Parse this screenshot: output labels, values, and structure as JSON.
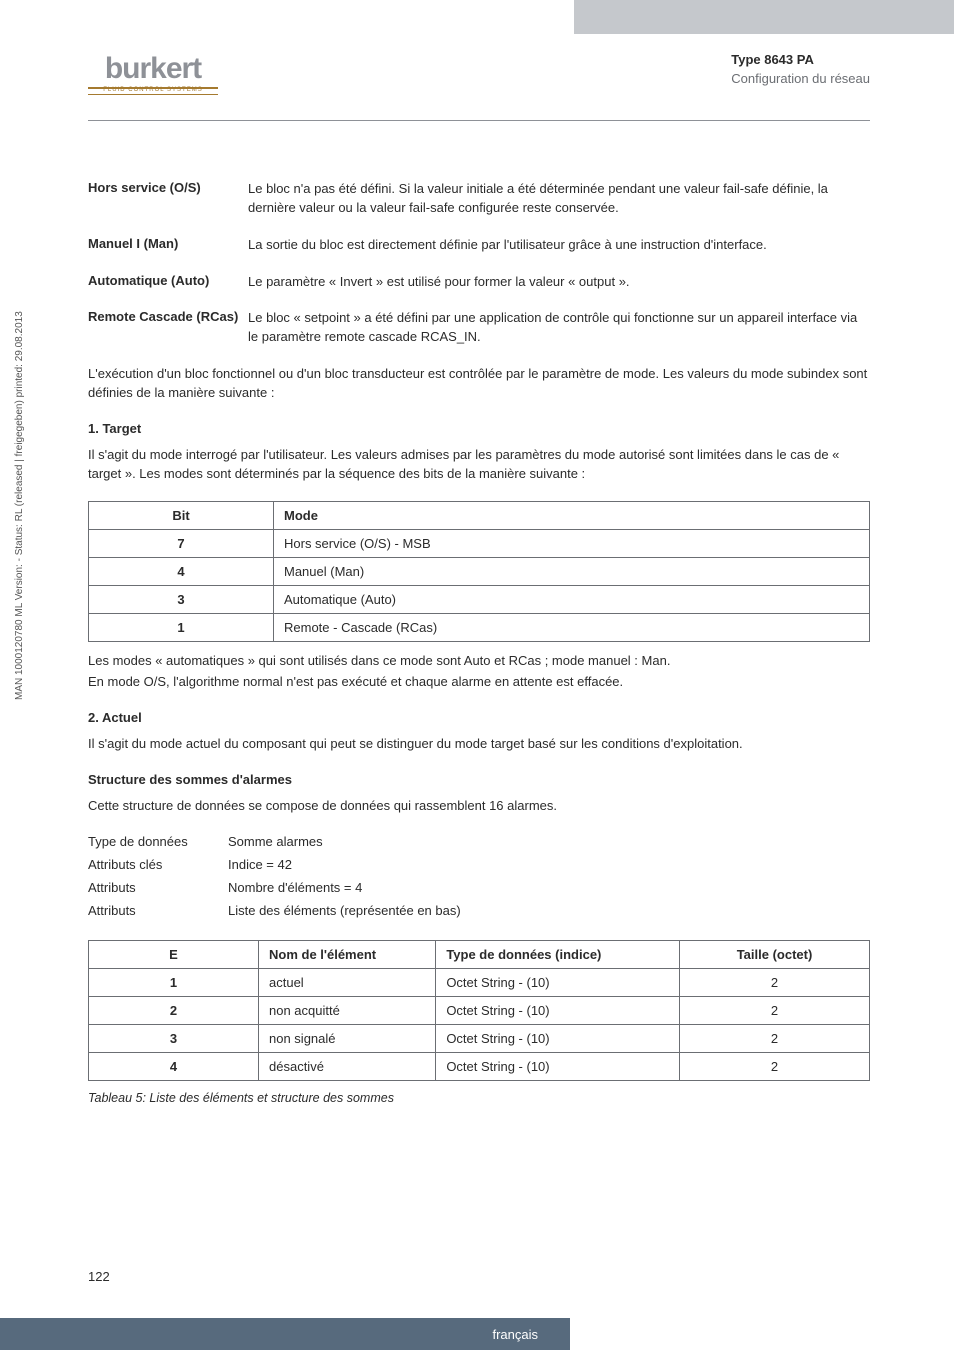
{
  "header": {
    "logo_text": "burkert",
    "logo_sub": "FLUID CONTROL SYSTEMS",
    "type_line": "Type 8643 PA",
    "subtitle": "Configuration du réseau"
  },
  "definitions": [
    {
      "term": "Hors service (O/S)",
      "body": "Le bloc n'a pas été défini. Si la valeur initiale a été déterminée pendant une valeur fail-safe définie, la dernière valeur ou la valeur fail-safe configurée reste conservée."
    },
    {
      "term": "Manuel I (Man)",
      "body": "La sortie du bloc est directement définie par l'utilisateur grâce à une instruction d'interface."
    },
    {
      "term": "Automatique (Auto)",
      "body": "Le paramètre « Invert » est utilisé pour former la valeur « output »."
    },
    {
      "term": "Remote Cascade (RCas)",
      "body": "Le bloc « setpoint » a été défini par une application de contrôle qui fonctionne sur un appareil interface via le paramètre remote cascade RCAS_IN."
    }
  ],
  "exec_para": "L'exécution d'un bloc fonctionnel ou d'un bloc transducteur est contrôlée par le paramètre de mode. Les valeurs du mode subindex sont définies de la manière suivante :",
  "sections": {
    "target_h": "1. Target",
    "target_p": "Il s'agit du mode interrogé par l'utilisateur. Les valeurs admises par les paramètres du mode autorisé sont limitées dans le cas de « target ». Les modes sont déterminés par la séquence des bits de la manière suivante :",
    "after_table1_l1": "Les modes « automatiques » qui sont utilisés dans ce mode sont Auto et RCas ; mode manuel : Man.",
    "after_table1_l2": "En mode O/S, l'algorithme normal n'est pas exécuté et chaque alarme en attente est effacée.",
    "actuel_h": "2. Actuel",
    "actuel_p": "Il s'agit du mode actuel du composant qui peut se distinguer du mode target basé sur les conditions d'exploitation.",
    "struct_h": "Structure des sommes d'alarmes",
    "struct_p": "Cette structure de données se compose de données qui rassemblent 16 alarmes."
  },
  "table1": {
    "head_bit": "Bit",
    "head_mode": "Mode",
    "rows": [
      {
        "bit": "7",
        "mode": "Hors service (O/S) - MSB"
      },
      {
        "bit": "4",
        "mode": "Manuel (Man)"
      },
      {
        "bit": "3",
        "mode": "Automatique (Auto)"
      },
      {
        "bit": "1",
        "mode": "Remote - Cascade (RCas)"
      }
    ]
  },
  "attrs": {
    "k0": "Type de données",
    "v0": "Somme alarmes",
    "k1": "Attributs clés",
    "v1": "Indice = 42",
    "k2": "Attributs",
    "v2": "Nombre d'éléments = 4",
    "k3": "Attributs",
    "v3": "Liste des éléments (représentée en bas)"
  },
  "table2": {
    "h_e": "E",
    "h_name": "Nom de l'élément",
    "h_type": "Type de données (indice)",
    "h_size": "Taille (octet)",
    "rows": [
      {
        "e": "1",
        "name": "actuel",
        "type": "Octet String - (10)",
        "size": "2"
      },
      {
        "e": "2",
        "name": "non acquitté",
        "type": "Octet String - (10)",
        "size": "2"
      },
      {
        "e": "3",
        "name": "non signalé",
        "type": "Octet String - (10)",
        "size": "2"
      },
      {
        "e": "4",
        "name": "désactivé",
        "type": "Octet String - (10)",
        "size": "2"
      }
    ],
    "caption": "Tableau 5: Liste des éléments et structure des sommes"
  },
  "sideways": "MAN 1000120780 ML Version: - Status: RL (released | freigegeben) printed: 29.08.2013",
  "page_num": "122",
  "footer_lang": "français"
}
